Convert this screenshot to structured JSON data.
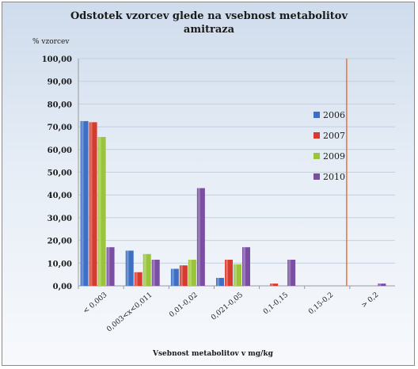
{
  "chart_data": {
    "type": "bar",
    "title": "Odstotek vzorcev glede na vsebnost metabolitov amitraza",
    "title_lines": [
      "Odstotek vzorcev glede na vsebnost metabolitov",
      "amitraza"
    ],
    "ylabel": "% vzorcev",
    "xlabel": "Vsebnost metabolitov v mg/kg",
    "categories": [
      "< 0,003",
      "0,003<x<0,011",
      "0,01-0,02",
      "0,021-0,05",
      "0,1-0,15",
      "0,15-0,2",
      "> 0,2"
    ],
    "ylim": [
      0,
      100
    ],
    "yticks": [
      "0,00",
      "10,00",
      "20,00",
      "30,00",
      "40,00",
      "50,00",
      "60,00",
      "70,00",
      "80,00",
      "90,00",
      "100,00"
    ],
    "grid": true,
    "legend_position": "right",
    "series": [
      {
        "name": "2006",
        "color": "#3d6fc4",
        "values": [
          72.5,
          15.5,
          7.5,
          3.5,
          0,
          0,
          0
        ]
      },
      {
        "name": "2007",
        "color": "#d63b2f",
        "values": [
          72,
          6,
          9,
          11.5,
          1,
          0,
          0
        ]
      },
      {
        "name": "2009",
        "color": "#9ac43a",
        "values": [
          65.5,
          14,
          11.5,
          9.5,
          0,
          0,
          0
        ]
      },
      {
        "name": "2010",
        "color": "#7a4ea3",
        "values": [
          17,
          11.5,
          43,
          17,
          11.5,
          0,
          1
        ]
      }
    ],
    "reference_line": {
      "color": "#f07030"
    }
  }
}
